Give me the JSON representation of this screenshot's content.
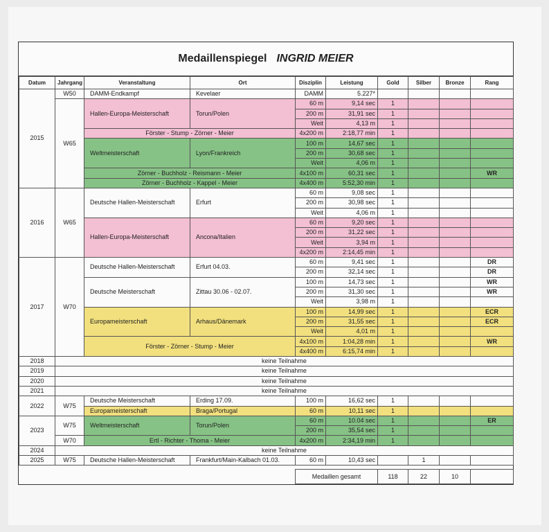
{
  "header": {
    "title": "Medaillenspiegel",
    "athlete": "INGRID MEIER"
  },
  "columns": [
    "Datum",
    "Jahrgang",
    "Veranstaltung",
    "Ort",
    "Disziplin",
    "Leistung",
    "Gold",
    "Silber",
    "Bronze",
    "Rang"
  ],
  "years": [
    {
      "datum": "2015",
      "groups": [
        {
          "jahrgang": "W50",
          "events": [
            {
              "veranstaltung": "DAMM-Endkampf",
              "ort": "Kevelaer",
              "results": [
                {
                  "disziplin": "DAMM",
                  "leistung": "5.227*"
                }
              ]
            }
          ]
        },
        {
          "jahrgang": "W65",
          "events": [
            {
              "veranstaltung": "Hallen-Europa-Meisterschaft",
              "ort": "Torun/Polen",
              "color": "#f3bfd2",
              "results": [
                {
                  "disziplin": "60 m",
                  "leistung": "9,14 sec",
                  "gold": 1
                },
                {
                  "disziplin": "200 m",
                  "leistung": "31,91 sec",
                  "gold": 1
                },
                {
                  "disziplin": "Weit",
                  "leistung": "4,13 m",
                  "gold": 1
                },
                {
                  "disziplin": "4x200 m",
                  "leistung": "2:18,77 min",
                  "gold": 1,
                  "team": "Förster - Stump - Zörner - Meier"
                }
              ]
            },
            {
              "veranstaltung": "Weltmeisterschaft",
              "ort": "Lyon/Frankreich",
              "color": "#86c285",
              "results": [
                {
                  "disziplin": "100 m",
                  "leistung": "14,67 sec",
                  "gold": 1
                },
                {
                  "disziplin": "200 m",
                  "leistung": "30,68 sec",
                  "gold": 1
                },
                {
                  "disziplin": "Weit",
                  "leistung": "4,06 m",
                  "gold": 1
                },
                {
                  "disziplin": "4x100 m",
                  "leistung": "60,31 sec",
                  "gold": 1,
                  "rang": "WR",
                  "team": "Zörner - Buchholz - Reismann - Meier"
                },
                {
                  "disziplin": "4x400 m",
                  "leistung": "5:52,30 min",
                  "gold": 1,
                  "team": "Zörner - Buchholz - Kappel - Meier"
                }
              ]
            }
          ]
        }
      ]
    },
    {
      "datum": "2016",
      "groups": [
        {
          "jahrgang": "W65",
          "events": [
            {
              "veranstaltung": "Deutsche Hallen-Meisterschaft",
              "ort": "Erfurt",
              "results": [
                {
                  "disziplin": "60 m",
                  "leistung": "9,08 sec",
                  "gold": 1
                },
                {
                  "disziplin": "200 m",
                  "leistung": "30,98 sec",
                  "gold": 1
                },
                {
                  "disziplin": "Weit",
                  "leistung": "4,06 m",
                  "gold": 1
                }
              ]
            },
            {
              "veranstaltung": "Hallen-Europa-Meisterschaft",
              "ort": "Ancona/Italien",
              "color": "#f3bfd2",
              "results": [
                {
                  "disziplin": "60 m",
                  "leistung": "9,20 sec",
                  "gold": 1
                },
                {
                  "disziplin": "200 m",
                  "leistung": "31,22 sec",
                  "gold": 1
                },
                {
                  "disziplin": "Weit",
                  "leistung": "3,94 m",
                  "gold": 1
                },
                {
                  "disziplin": "4x200 m",
                  "leistung": "2:14,45 min",
                  "gold": 1
                }
              ]
            }
          ]
        }
      ]
    },
    {
      "datum": "2017",
      "groups": [
        {
          "jahrgang": "W70",
          "events": [
            {
              "veranstaltung": "Deutsche Hallen-Meisterschaft",
              "ort": "Erfurt 04.03.",
              "results": [
                {
                  "disziplin": "60 m",
                  "leistung": "9,41 sec",
                  "gold": 1,
                  "rang": "DR"
                },
                {
                  "disziplin": "200 m",
                  "leistung": "32,14 sec",
                  "gold": 1,
                  "rang": "DR"
                }
              ]
            },
            {
              "veranstaltung": "Deutsche Meisterschaft",
              "ort": "Zittau 30.06 - 02.07.",
              "results": [
                {
                  "disziplin": "100 m",
                  "leistung": "14,73 sec",
                  "gold": 1,
                  "rang": "WR"
                },
                {
                  "disziplin": "200 m",
                  "leistung": "31,30 sec",
                  "gold": 1,
                  "rang": "WR"
                },
                {
                  "disziplin": "Weit",
                  "leistung": "3,98 m",
                  "gold": 1
                }
              ]
            },
            {
              "veranstaltung": "Europameisterschaft",
              "ort": "Arhaus/Dänemark",
              "color": "#f2e07e",
              "results": [
                {
                  "disziplin": "100 m",
                  "leistung": "14,99 sec",
                  "gold": 1,
                  "rang": "ECR"
                },
                {
                  "disziplin": "200 m",
                  "leistung": "31,55 sec",
                  "gold": 1,
                  "rang": "ECR"
                },
                {
                  "disziplin": "Weit",
                  "leistung": "4,01 m",
                  "gold": 1
                },
                {
                  "disziplin": "4x100 m",
                  "leistung": "1:04,28 min",
                  "gold": 1,
                  "rang": "WR",
                  "team": "Förster - Zörner - Stump - Meier"
                },
                {
                  "disziplin": "4x400 m",
                  "leistung": "6:15,74 min",
                  "gold": 1
                }
              ]
            }
          ]
        }
      ]
    },
    {
      "datum": "2018",
      "note": "keine Teilnahme"
    },
    {
      "datum": "2019",
      "note": "keine Teilnahme"
    },
    {
      "datum": "2020",
      "note": "keine Teilnahme"
    },
    {
      "datum": "2021",
      "note": "keine Teilnahme"
    },
    {
      "datum": "2022",
      "groups": [
        {
          "jahrgang": "W75",
          "events": [
            {
              "veranstaltung": "Deutsche Meisterschaft",
              "ort": "Erding 17.09.",
              "results": [
                {
                  "disziplin": "100 m",
                  "leistung": "16,62 sec",
                  "gold": 1
                }
              ]
            },
            {
              "veranstaltung": "Europameisterschaft",
              "ort": "Braga/Portugal",
              "color": "#f2e07e",
              "results": [
                {
                  "disziplin": "60 m",
                  "leistung": "10,11 sec",
                  "gold": 1
                }
              ]
            }
          ]
        }
      ]
    },
    {
      "datum": "2023",
      "groups": [
        {
          "jahrgang": "W75",
          "events": [
            {
              "veranstaltung": "Weltmeisterschaft",
              "ort": "Torun/Polen",
              "color": "#86c285",
              "results": [
                {
                  "disziplin": "60 m",
                  "leistung": "10.04 sec",
                  "gold": 1,
                  "rang": "ER"
                },
                {
                  "disziplin": "200 m",
                  "leistung": "35,54 sec",
                  "gold": 1
                }
              ]
            }
          ]
        },
        {
          "jahrgang": "W70",
          "events": [
            {
              "color": "#86c285",
              "results": [
                {
                  "disziplin": "4x200 m",
                  "leistung": "2:34,19 min",
                  "gold": 1,
                  "team": "Ertl - Richter - Thoma - Meier"
                }
              ]
            }
          ]
        }
      ]
    },
    {
      "datum": "2024",
      "note": "keine Teilnahme"
    },
    {
      "datum": "2025",
      "groups": [
        {
          "jahrgang": "W75",
          "events": [
            {
              "veranstaltung": "Deutsche Hallen-Meisterschaft",
              "ort": "Frankfurt/Main-Kalbach 01.03.",
              "results": [
                {
                  "disziplin": "60 m",
                  "leistung": "10,43 sec",
                  "silber": 1
                }
              ]
            }
          ]
        }
      ]
    }
  ],
  "totals": {
    "label": "Medaillen gesamt",
    "gold": 118,
    "silber": 22,
    "bronze": 10
  }
}
